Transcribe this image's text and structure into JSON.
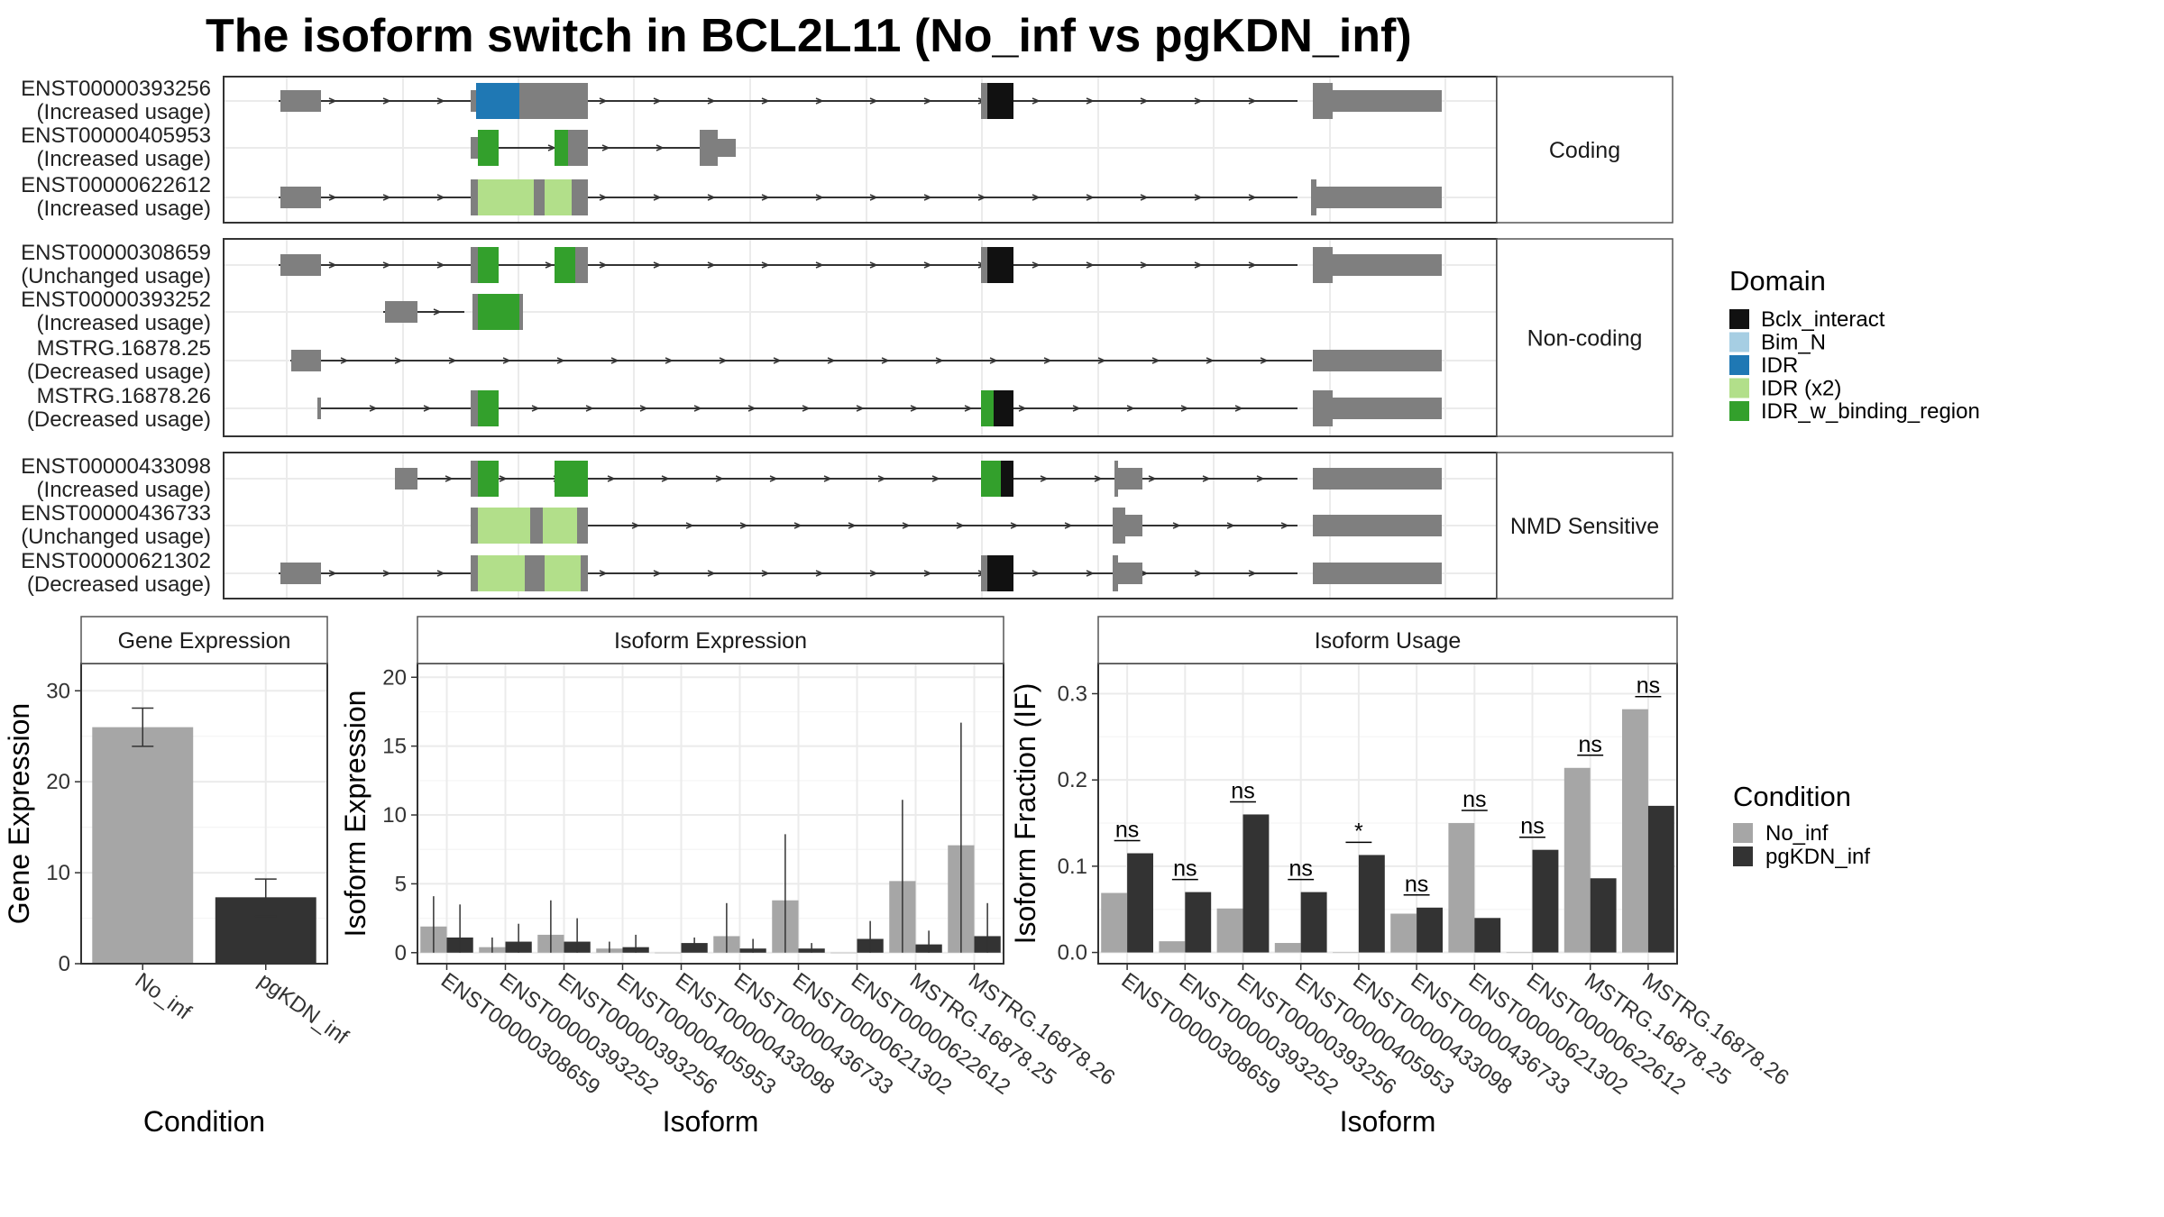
{
  "title": "The isoform switch in BCL2L11 (No_inf vs pgKDN_inf)",
  "colors": {
    "exon": "#7f7f7f",
    "intron": "#333333",
    "Bclx_interact": "#111111",
    "Bim_N": "#a6cee3",
    "IDR": "#1f78b4",
    "IDR (x2)": "#b2df8a",
    "IDR_w_binding_region": "#33a02c",
    "No_inf": "#a6a6a6",
    "pgKDN_inf": "#333333",
    "panel_border": "#333333",
    "strip_fill": "#ffffff",
    "grid": "#ebebeb"
  },
  "structure": {
    "groups": [
      {
        "label": "Coding",
        "isoforms": [
          {
            "id": "ENST00000393256",
            "usage": "(Increased usage)"
          },
          {
            "id": "ENST00000405953",
            "usage": "(Increased usage)"
          },
          {
            "id": "ENST00000622612",
            "usage": "(Increased usage)"
          }
        ]
      },
      {
        "label": "Non-coding",
        "isoforms": [
          {
            "id": "ENST00000308659",
            "usage": "(Unchanged usage)"
          },
          {
            "id": "ENST00000393252",
            "usage": "(Increased usage)"
          },
          {
            "id": "MSTRG.16878.25",
            "usage": "(Decreased usage)"
          },
          {
            "id": "MSTRG.16878.26",
            "usage": "(Decreased usage)"
          }
        ]
      },
      {
        "label": "NMD Sensitive",
        "isoforms": [
          {
            "id": "ENST00000433098",
            "usage": "(Increased usage)"
          },
          {
            "id": "ENST00000436733",
            "usage": "(Unchanged usage)"
          },
          {
            "id": "ENST00000621302",
            "usage": "(Decreased usage)"
          }
        ]
      }
    ]
  },
  "domain_legend": {
    "title": "Domain",
    "items": [
      "Bclx_interact",
      "Bim_N",
      "IDR",
      "IDR (x2)",
      "IDR_w_binding_region"
    ]
  },
  "condition_legend": {
    "title": "Condition",
    "items": [
      "No_inf",
      "pgKDN_inf"
    ]
  },
  "chart_data": [
    {
      "type": "bar",
      "title": "Gene Expression",
      "xlabel": "Condition",
      "ylabel": "Gene Expression",
      "categories": [
        "No_inf",
        "pgKDN_inf"
      ],
      "values": [
        26.0,
        7.3
      ],
      "error_low": [
        23.9,
        5.2
      ],
      "error_high": [
        28.1,
        9.3
      ],
      "ylim": [
        0,
        33
      ],
      "yticks": [
        0,
        10,
        20,
        30
      ]
    },
    {
      "type": "bar",
      "title": "Isoform Expression",
      "xlabel": "Isoform",
      "ylabel": "Isoform Expression",
      "categories": [
        "ENST00000308659",
        "ENST00000393252",
        "ENST00000393256",
        "ENST00000405953",
        "ENST00000433098",
        "ENST00000436733",
        "ENST00000621302",
        "ENST00000622612",
        "MSTRG.16878.25",
        "MSTRG.16878.26"
      ],
      "series": [
        {
          "name": "No_inf",
          "values": [
            1.9,
            0.4,
            1.3,
            0.3,
            0.0,
            1.2,
            3.8,
            0.0,
            5.2,
            7.8
          ],
          "error_low": [
            0,
            0,
            0,
            0,
            0,
            0,
            0,
            0,
            0,
            0
          ],
          "error_high": [
            4.1,
            1.1,
            3.8,
            0.8,
            0.0,
            3.6,
            8.6,
            0.0,
            11.1,
            16.7
          ]
        },
        {
          "name": "pgKDN_inf",
          "values": [
            1.1,
            0.8,
            0.8,
            0.4,
            0.7,
            0.3,
            0.3,
            1.0,
            0.6,
            1.2
          ],
          "error_low": [
            0,
            0,
            0,
            0,
            0.2,
            0,
            0,
            0,
            0,
            0
          ],
          "error_high": [
            3.5,
            2.1,
            2.5,
            1.3,
            1.1,
            1.0,
            0.7,
            2.3,
            1.6,
            3.6
          ]
        }
      ],
      "ylim": [
        -0.8,
        21
      ],
      "yticks": [
        0,
        5,
        10,
        15,
        20
      ]
    },
    {
      "type": "bar",
      "title": "Isoform Usage",
      "xlabel": "Isoform",
      "ylabel": "Isoform Fraction (IF)",
      "categories": [
        "ENST00000308659",
        "ENST00000393252",
        "ENST00000393256",
        "ENST00000405953",
        "ENST00000433098",
        "ENST00000436733",
        "ENST00000621302",
        "ENST00000622612",
        "MSTRG.16878.25",
        "MSTRG.16878.26"
      ],
      "series": [
        {
          "name": "No_inf",
          "values": [
            0.069,
            0.013,
            0.051,
            0.011,
            0.0,
            0.045,
            0.15,
            0.0,
            0.214,
            0.282
          ]
        },
        {
          "name": "pgKDN_inf",
          "values": [
            0.115,
            0.07,
            0.16,
            0.07,
            0.113,
            0.052,
            0.04,
            0.119,
            0.086,
            0.17
          ]
        }
      ],
      "significance": [
        "ns",
        "ns",
        "ns",
        "ns",
        "*",
        "ns",
        "ns",
        "ns",
        "ns",
        "ns"
      ],
      "ylim": [
        -0.013,
        0.335
      ],
      "yticks": [
        0.0,
        0.1,
        0.2,
        0.3
      ],
      "ytick_labels": [
        "0.0",
        "0.1",
        "0.2",
        "0.3"
      ]
    }
  ]
}
